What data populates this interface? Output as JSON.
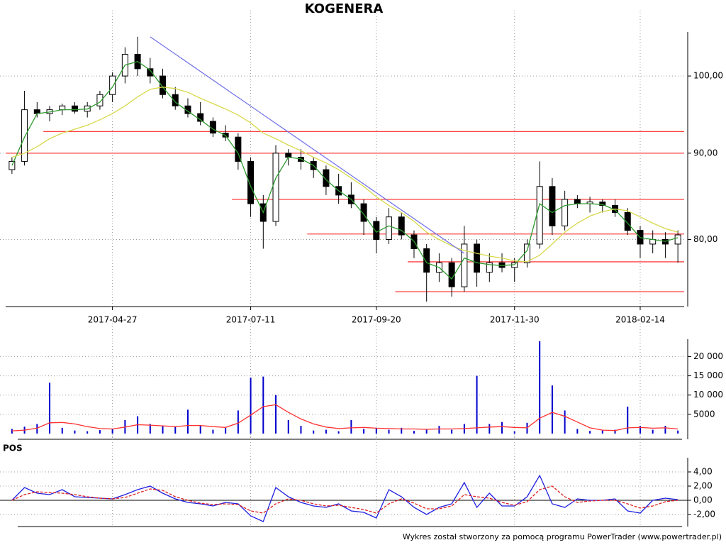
{
  "chart_data": [
    {
      "type": "candlestick",
      "title": "KOGENERA",
      "categories": [
        null,
        null,
        null,
        null,
        null,
        null,
        null,
        null,
        "2017-04-27",
        null,
        null,
        null,
        null,
        null,
        null,
        null,
        null,
        null,
        null,
        "2017-07-11",
        null,
        null,
        null,
        null,
        null,
        null,
        null,
        null,
        null,
        "2017-09-20",
        null,
        null,
        null,
        null,
        null,
        null,
        null,
        null,
        null,
        null,
        "2017-11-30",
        null,
        null,
        null,
        null,
        null,
        null,
        null,
        null,
        null,
        "2018-02-14",
        null,
        null,
        null
      ],
      "open": [
        88,
        89,
        95.5,
        95,
        95.5,
        96,
        95.3,
        96,
        97.5,
        100,
        103,
        101,
        100,
        97.5,
        96,
        95,
        94,
        92.5,
        92,
        89,
        84,
        82,
        90,
        89.5,
        89,
        88,
        86,
        85,
        84,
        82,
        80,
        82.5,
        80.5,
        79,
        76.5,
        77.5,
        75,
        79.5,
        76.5,
        77.5,
        77,
        77.5,
        79.5,
        86,
        81.5,
        84.5,
        84,
        84.2,
        83.8,
        83,
        81,
        79.5,
        80,
        79.5
      ],
      "high": [
        89.5,
        98,
        96.5,
        96,
        96.3,
        96.5,
        96.5,
        98,
        100.5,
        104,
        105.5,
        102.5,
        101,
        98.5,
        97,
        96.5,
        94.5,
        93.5,
        92.5,
        89.5,
        85,
        91,
        90.5,
        90.5,
        89.5,
        88.5,
        87.5,
        86.5,
        84.5,
        82.5,
        83.5,
        83,
        81,
        79.5,
        78.5,
        78,
        81.5,
        80,
        78.5,
        78.5,
        78,
        80,
        89,
        87,
        85.5,
        85,
        84.8,
        84.5,
        84.5,
        83.5,
        81.5,
        81,
        80.8,
        81
      ],
      "low": [
        87.5,
        88.5,
        94.5,
        94,
        94.8,
        95,
        94.5,
        95.5,
        96.5,
        99,
        100,
        99,
        97,
        95.5,
        94.5,
        93.5,
        92,
        91.5,
        88,
        82.5,
        79,
        81.5,
        88.5,
        88,
        87,
        85,
        84,
        83.5,
        80.5,
        78.5,
        79.5,
        80,
        78,
        73.5,
        75.5,
        74,
        74.5,
        75,
        75.5,
        76.5,
        75.5,
        77,
        79,
        80.5,
        81,
        83.5,
        83,
        83,
        82.5,
        80.5,
        78,
        78.5,
        78,
        77.5
      ],
      "close": [
        89,
        95.5,
        95,
        95.5,
        96,
        95.3,
        96,
        97.5,
        100,
        103,
        101,
        100,
        97.5,
        96,
        95,
        94,
        92.5,
        92,
        89,
        84,
        82,
        90,
        89.5,
        89,
        88,
        86,
        85,
        84,
        82,
        80,
        82.5,
        80.5,
        79,
        76.5,
        77.5,
        75,
        79.5,
        76.5,
        77.5,
        77,
        77.5,
        79.5,
        86,
        81.5,
        84.5,
        84,
        84.2,
        83.8,
        83,
        81,
        79.5,
        80,
        79.5,
        80.5
      ],
      "up_color": "#ffffff",
      "down_color": "#000000",
      "lines": [
        {
          "color": "#2e9a2e",
          "values": [
            88.5,
            92,
            95,
            95.2,
            95.5,
            95.5,
            95.6,
            96.5,
            98.5,
            101.5,
            102,
            100.8,
            98.5,
            96.5,
            95.3,
            94.2,
            93,
            92.2,
            90,
            86,
            83,
            87,
            89.5,
            89.3,
            88.5,
            86.8,
            85.5,
            84.5,
            82.8,
            80.8,
            81.5,
            81,
            79.8,
            77.5,
            77,
            75.8,
            78,
            77.5,
            77.3,
            77.2,
            77.3,
            78.8,
            84,
            83,
            83.8,
            84,
            84,
            83.9,
            83.3,
            81.8,
            80.2,
            80,
            79.8,
            80.2
          ]
        },
        {
          "color": "#d8d84a",
          "values": [
            89.5,
            90,
            90.8,
            91.8,
            92.5,
            93,
            93.5,
            94.2,
            95,
            96,
            97.2,
            98.2,
            98.5,
            98.3,
            97.8,
            97,
            96.3,
            95.6,
            94.8,
            93.8,
            92.5,
            91.8,
            91,
            90.3,
            89.5,
            88.8,
            88,
            87,
            86,
            84.8,
            83.8,
            83,
            82,
            80.8,
            80,
            79.3,
            78.8,
            78.5,
            78.2,
            78,
            77.7,
            77.6,
            78.3,
            79.5,
            80.8,
            81.8,
            82.6,
            83.1,
            83.4,
            83.2,
            82.5,
            81.8,
            81.2,
            80.8
          ]
        }
      ],
      "hline_color": "#ff4040",
      "hlines": [
        {
          "value": 92.7,
          "start": 3
        },
        {
          "value": 90,
          "start": 0
        },
        {
          "value": 84.5,
          "start": 18
        },
        {
          "value": 80.6,
          "start": 24
        },
        {
          "value": 77.6,
          "start": 32
        },
        {
          "value": 74.5,
          "start": 31
        }
      ],
      "trendline": {
        "x": [
          11,
          36
        ],
        "values": [
          105.5,
          78.5
        ],
        "color": "#6f6fe8"
      },
      "ylim": [
        73,
        106.2
      ],
      "log_scale": true,
      "grid": true,
      "yticks": [
        {
          "value": 80,
          "label": "80,00"
        },
        {
          "value": 90,
          "label": "90,00"
        },
        {
          "value": 100,
          "label": "100,00"
        }
      ]
    },
    {
      "type": "bar",
      "color": "#0000cc",
      "values": [
        1200,
        1800,
        2500,
        13200,
        1500,
        800,
        600,
        900,
        1200,
        3500,
        4500,
        2500,
        2000,
        1800,
        6200,
        2000,
        1000,
        1500,
        6000,
        14500,
        14800,
        10000,
        3500,
        2000,
        800,
        1000,
        600,
        3500,
        1200,
        1500,
        1000,
        1500,
        700,
        1200,
        2000,
        1000,
        2500,
        15000,
        2500,
        3000,
        600,
        2800,
        24000,
        12500,
        6000,
        1200,
        700,
        800,
        1000,
        7000,
        2000,
        1000,
        2000,
        800
      ],
      "lines": [
        {
          "color": "#ff3030",
          "values": [
            700,
            900,
            1400,
            2800,
            2900,
            2500,
            1800,
            1300,
            1200,
            1700,
            2300,
            2200,
            2000,
            1800,
            2100,
            2100,
            1800,
            1600,
            2700,
            4800,
            7000,
            7500,
            5500,
            3800,
            2500,
            1700,
            1300,
            1500,
            1600,
            1400,
            1300,
            1200,
            1200,
            1100,
            1200,
            1200,
            1300,
            1500,
            1700,
            1800,
            1600,
            1500,
            4000,
            5500,
            4500,
            3000,
            1500,
            900,
            800,
            1500,
            1600,
            1400,
            1500,
            1200
          ]
        }
      ],
      "ylim": [
        0,
        24500
      ],
      "grid": true,
      "yticks": [
        5000,
        {
          "value": 10000,
          "label": "10 000"
        },
        {
          "value": 15000,
          "label": "15 000"
        },
        {
          "value": 20000,
          "label": "20 000"
        }
      ]
    },
    {
      "type": "line",
      "title": "POS",
      "lines": [
        {
          "color": "#1f1fe0",
          "values": [
            0,
            1.8,
            1.0,
            0.8,
            1.5,
            0.5,
            0.4,
            0.3,
            0.2,
            0.8,
            1.5,
            2.0,
            1.0,
            0.2,
            -0.3,
            -0.5,
            -0.8,
            -0.3,
            -0.5,
            -2.2,
            -3.0,
            1.8,
            0.5,
            -0.3,
            -0.8,
            -1.0,
            -0.5,
            -1.5,
            -1.7,
            -2.5,
            1.5,
            0.5,
            -1.0,
            -2.0,
            -1.0,
            -0.5,
            2.5,
            -1.0,
            1.0,
            -0.8,
            -0.8,
            0.5,
            3.5,
            -0.5,
            -1.0,
            0.2,
            0,
            0,
            0.2,
            -1.5,
            -1.8,
            0,
            0.3,
            0.1
          ]
        },
        {
          "color": "#e02020",
          "dash": true,
          "values": [
            0,
            0.8,
            1.2,
            1.1,
            1.0,
            0.8,
            0.5,
            0.3,
            0.2,
            0.4,
            1.0,
            1.6,
            1.4,
            0.5,
            0,
            -0.4,
            -0.6,
            -0.5,
            -0.6,
            -1.5,
            -1.8,
            -0.5,
            0.2,
            0,
            -0.5,
            -0.8,
            -0.7,
            -1.0,
            -1.3,
            -1.8,
            -0.5,
            0.2,
            -0.4,
            -1.2,
            -1.2,
            -0.8,
            0.8,
            0.5,
            0.3,
            -0.3,
            -0.7,
            -0.2,
            1.5,
            2.0,
            0.5,
            -0.3,
            -0.1,
            0,
            0,
            -0.5,
            -1.1,
            -0.8,
            -0.2,
            0
          ]
        }
      ],
      "ylim": [
        -3.7,
        6
      ],
      "grid": true,
      "zero_line": true,
      "yticks": [
        {
          "value": -2,
          "label": "-2,00"
        },
        {
          "value": 0,
          "label": "0,00"
        },
        {
          "value": 2,
          "label": "2,00"
        },
        {
          "value": 4,
          "label": "4,00"
        }
      ]
    }
  ],
  "footer": "Wykres został stworzony za pomocą programu PowerTrader (www.powertrader.pl)"
}
